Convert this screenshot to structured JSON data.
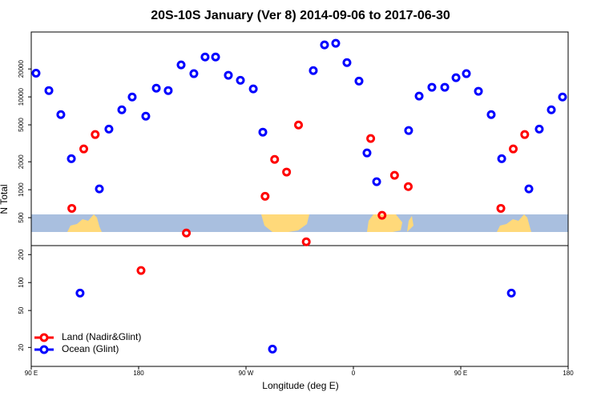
{
  "chart_data": {
    "type": "scatter",
    "title": "20S-10S January (Ver 8)   2014-09-06 to 2017-06-30",
    "x_label": "Longitude (deg E)",
    "y_label": "N Total",
    "log_y": true,
    "legend": "bottom-left",
    "xlim": [
      90,
      540
    ],
    "ylim": [
      12.5,
      50000
    ],
    "xticks": [
      {
        "value": 90,
        "label": "90 E"
      },
      {
        "value": 180,
        "label": "180"
      },
      {
        "value": 270,
        "label": "90 W"
      },
      {
        "value": 360,
        "label": "0"
      },
      {
        "value": 450,
        "label": "90 E"
      },
      {
        "value": 540,
        "label": "180"
      }
    ],
    "yticks": [
      20,
      50,
      100,
      200,
      500,
      1000,
      2000,
      5000,
      10000,
      20000
    ],
    "series": [
      {
        "name": "Land (Nadir&Glint)",
        "color": "#ff0000",
        "x": [
          124,
          134,
          143.6,
          182,
          220,
          286,
          294,
          304,
          314,
          320.5,
          374.5,
          384,
          394.5,
          406,
          483.6,
          494,
          503.6
        ],
        "values": [
          630,
          2750,
          3930,
          135,
          342,
          850,
          2120,
          1550,
          4980,
          275,
          3560,
          530,
          1430,
          1080,
          630,
          2750,
          3930
        ]
      },
      {
        "name": "Ocean (Glint)",
        "color": "#0000ff",
        "x": [
          94,
          104.8,
          114.8,
          123.6,
          130.9,
          147.1,
          155.1,
          165.9,
          174.6,
          186,
          194.8,
          204.8,
          215.6,
          226.3,
          235.7,
          244.5,
          255.2,
          265.3,
          276.1,
          284.1,
          292.2,
          326.4,
          335.8,
          345.2,
          354.6,
          364.7,
          371.4,
          379.5,
          406.3,
          415.1,
          425.8,
          436.6,
          446,
          454.7,
          464.8,
          475.5,
          484.3,
          492.4,
          507.1,
          515.8,
          525.9,
          535.3
        ],
        "values": [
          18000,
          11700,
          6450,
          2160,
          77,
          1020,
          4500,
          7260,
          9980,
          6200,
          12400,
          11700,
          22100,
          17800,
          26900,
          26900,
          17100,
          15100,
          12200,
          4170,
          19.2,
          19200,
          36300,
          37800,
          23400,
          14800,
          2490,
          1220,
          4340,
          10200,
          12700,
          12700,
          16100,
          17800,
          11500,
          6450,
          2160,
          77,
          1020,
          4500,
          7260,
          9980
        ]
      }
    ]
  }
}
